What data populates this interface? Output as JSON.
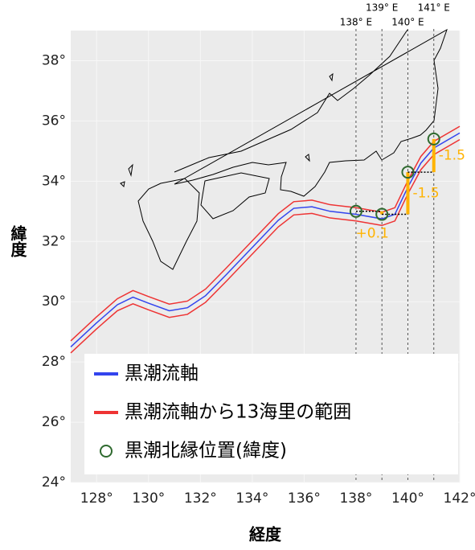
{
  "chart_data": {
    "type": "map",
    "xlabel": "経度",
    "ylabel": "緯度",
    "xlim": [
      127,
      142
    ],
    "ylim": [
      24,
      39
    ],
    "xticks": [
      {
        "value": 128,
        "label": "128°"
      },
      {
        "value": 130,
        "label": "130°"
      },
      {
        "value": 132,
        "label": "132°"
      },
      {
        "value": 134,
        "label": "134°"
      },
      {
        "value": 136,
        "label": "136°"
      },
      {
        "value": 138,
        "label": "138°"
      },
      {
        "value": 140,
        "label": "140°"
      },
      {
        "value": 142,
        "label": "142°"
      }
    ],
    "yticks": [
      {
        "value": 24,
        "label": "24°"
      },
      {
        "value": 26,
        "label": "26°"
      },
      {
        "value": 28,
        "label": "28°"
      },
      {
        "value": 30,
        "label": "30°"
      },
      {
        "value": 32,
        "label": "32°"
      },
      {
        "value": 34,
        "label": "34°"
      },
      {
        "value": 36,
        "label": "36°"
      },
      {
        "value": 38,
        "label": "38°"
      }
    ],
    "grid": true,
    "series": [
      {
        "name": "黒潮流軸",
        "color": "#3344ee",
        "x": [
          127,
          128,
          128.8,
          129.4,
          130,
          130.8,
          131.5,
          132.2,
          133,
          134,
          135,
          135.6,
          136.3,
          137,
          138,
          139,
          139.5,
          140,
          140.5,
          141,
          142
        ],
        "values": [
          28.5,
          29.3,
          29.9,
          30.15,
          29.95,
          29.7,
          29.8,
          30.2,
          30.9,
          31.8,
          32.7,
          33.1,
          33.15,
          33.0,
          32.9,
          32.75,
          32.9,
          33.8,
          34.6,
          35.1,
          35.6
        ]
      },
      {
        "name": "黒潮流軸から13海里の範囲",
        "color": "#ee3333",
        "x": [
          127,
          128,
          128.8,
          129.4,
          130,
          130.8,
          131.5,
          132.2,
          133,
          134,
          135,
          135.6,
          136.3,
          137,
          138,
          139,
          139.5,
          140,
          140.5,
          141,
          142
        ],
        "values": [
          28.7,
          29.5,
          30.1,
          30.37,
          30.17,
          29.92,
          30.02,
          30.42,
          31.12,
          32.02,
          32.92,
          33.32,
          33.37,
          33.22,
          33.12,
          32.97,
          33.12,
          34.02,
          34.82,
          35.32,
          35.82
        ]
      },
      {
        "color": "#ee3333",
        "x": [
          127,
          128,
          128.8,
          129.4,
          130,
          130.8,
          131.5,
          132.2,
          133,
          134,
          135,
          135.6,
          136.3,
          137,
          138,
          139,
          139.5,
          140,
          140.5,
          141,
          142
        ],
        "values": [
          28.3,
          29.1,
          29.7,
          29.93,
          29.73,
          29.48,
          29.58,
          29.98,
          30.68,
          31.58,
          32.48,
          32.88,
          32.93,
          32.78,
          32.68,
          32.53,
          32.68,
          33.58,
          34.38,
          34.88,
          35.38
        ]
      }
    ],
    "points": {
      "name": "黒潮北縁位置(緯度)",
      "color": "#2f6a2f",
      "bar_color": "#ffb300",
      "x": [
        138,
        139,
        140,
        141
      ],
      "values": [
        33.0,
        32.9,
        34.3,
        35.4
      ],
      "changes": [
        0.1,
        -1.5,
        -1.5
      ],
      "change_labels": [
        "+0.1",
        "-1.5",
        "-1.5"
      ]
    },
    "ref_lines": {
      "x": [
        138,
        139,
        140,
        141
      ],
      "labels": [
        "138° E",
        "139° E",
        "140° E",
        "141° E"
      ]
    }
  }
}
